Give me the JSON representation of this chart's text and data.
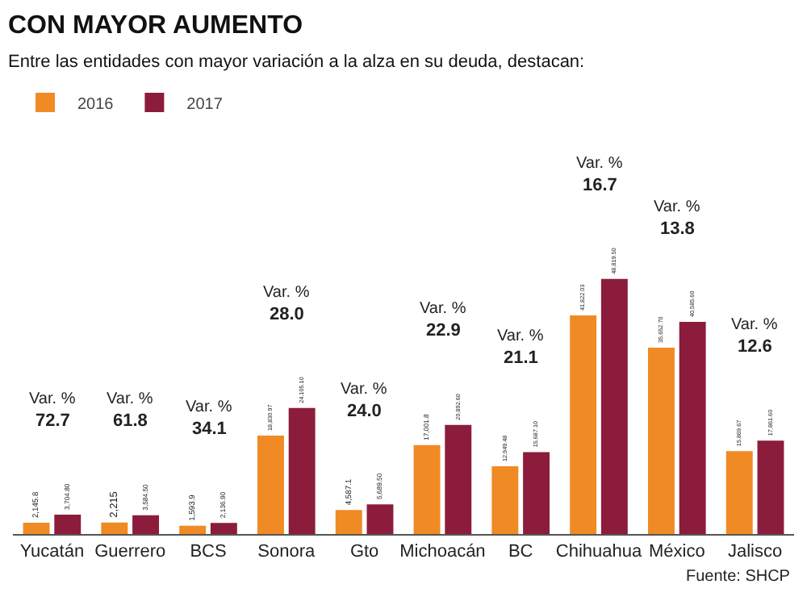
{
  "chart_data": {
    "type": "bar",
    "title": "CON MAYOR AUMENTO",
    "subtitle": "Entre las entidades con mayor variación a la alza en su deuda, destacan:",
    "categories": [
      "Yucatán",
      "Guerrero",
      "BCS",
      "Sonora",
      "Gto",
      "Michoacán",
      "BC",
      "Chihuahua",
      "México",
      "Jalisco"
    ],
    "series": [
      {
        "name": "2016",
        "color": "#f08a24",
        "values": [
          2145.8,
          2215,
          1593.9,
          18830.97,
          4587.1,
          17001.8,
          12949.48,
          41822.03,
          35652.7,
          15869.67
        ],
        "value_labels": [
          "2,145.8",
          "2,215",
          "1,593.9",
          "18,830.97",
          "4,587.1",
          "17,001.8",
          "12,949.48",
          "41,822.03",
          "35,652.70",
          "15,869.67"
        ]
      },
      {
        "name": "2017",
        "color": "#8c1c3c",
        "values": [
          3704.8,
          3584.5,
          2136.9,
          24105.1,
          5689.5,
          20892.6,
          15687.1,
          48819.5,
          40585.6,
          17861.6
        ],
        "value_labels": [
          "3,704.80",
          "3,584.50",
          "2,136.90",
          "24,105.10",
          "5,689.50",
          "20,892.60",
          "15,687.10",
          "48,819.50",
          "40,585.60",
          "17,861.60"
        ]
      }
    ],
    "annotations": [
      "Var. %",
      "72.7",
      "Var. %",
      "61.8",
      "Var. %",
      "34.1",
      "Var. %",
      "28.0",
      "Var. %",
      "24.0",
      "Var. %",
      "22.9",
      "Var. %",
      "21.1",
      "Var. %",
      "16.7",
      "Var. %",
      "13.8",
      "Var. %",
      "12.6",
      "Fuente: SHCP"
    ],
    "legend": "top left",
    "grid": false,
    "tick_labels": "x"
  }
}
